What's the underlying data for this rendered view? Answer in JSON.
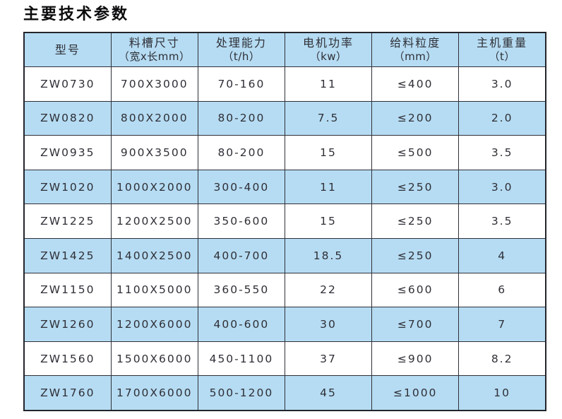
{
  "page": {
    "title": "主要技术参数"
  },
  "table": {
    "headers": [
      {
        "line1": "型号",
        "line2": ""
      },
      {
        "line1": "料槽尺寸",
        "line2": "（宽x长mm）"
      },
      {
        "line1": "处理能力",
        "line2": "（t/h）"
      },
      {
        "line1": "电机功率",
        "line2": "（kw）"
      },
      {
        "line1": "给料粒度",
        "line2": "（mm）"
      },
      {
        "line1": "主机重量",
        "line2": "（t）"
      }
    ],
    "rows": [
      [
        "ZW0730",
        "700X3000",
        "70-160",
        "11",
        "≤400",
        "3.0"
      ],
      [
        "ZW0820",
        "800X2000",
        "80-200",
        "7.5",
        "≤200",
        "2.0"
      ],
      [
        "ZW0935",
        "900X3500",
        "80-200",
        "15",
        "≤500",
        "3.5"
      ],
      [
        "ZW1020",
        "1000X2000",
        "300-400",
        "11",
        "≤250",
        "3.0"
      ],
      [
        "ZW1225",
        "1200X2500",
        "350-600",
        "15",
        "≤250",
        "3.5"
      ],
      [
        "ZW1425",
        "1400X2500",
        "400-700",
        "18.5",
        "≤250",
        "4"
      ],
      [
        "ZW1150",
        "1100X5000",
        "360-550",
        "22",
        "≤600",
        "6"
      ],
      [
        "ZW1260",
        "1200X6000",
        "400-600",
        "30",
        "≤700",
        "7"
      ],
      [
        "ZW1560",
        "1500X6000",
        "450-1100",
        "37",
        "≤900",
        "8.2"
      ],
      [
        "ZW1760",
        "1700X6000",
        "500-1200",
        "45",
        "≤1000",
        "10"
      ]
    ],
    "colors": {
      "band_bg": "#b6dcf3",
      "row_bg": "#ffffff",
      "border": "#2e3038",
      "text": "#2e2f36"
    }
  }
}
